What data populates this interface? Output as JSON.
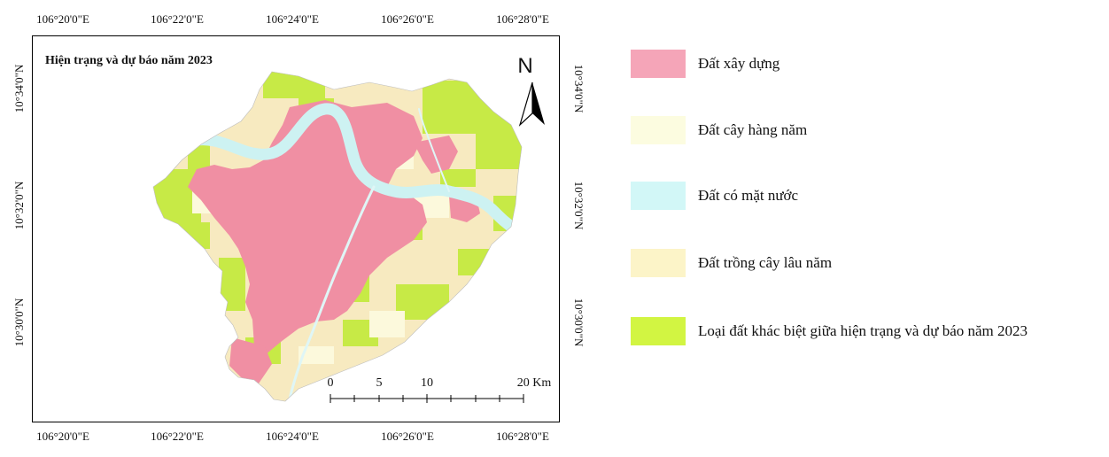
{
  "map": {
    "title": "Hiện trạng và dự báo năm 2023",
    "north_label": "N",
    "lon_labels": [
      "106°20'0\"E",
      "106°22'0\"E",
      "106°24'0\"E",
      "106°26'0\"E",
      "106°28'0\"E"
    ],
    "lat_labels": [
      "10°34'0\"N",
      "10°32'0\"N",
      "10°30'0\"N"
    ],
    "scale_bar": {
      "labels": [
        "0",
        "5",
        "10",
        "20 Km"
      ]
    }
  },
  "legend": {
    "items": [
      {
        "label": "Đất xây dựng",
        "color": "#f5a5b8"
      },
      {
        "label": "Đất cây hàng năm",
        "color": "#fcfce0"
      },
      {
        "label": "Đất có mặt nước",
        "color": "#d2f7f7"
      },
      {
        "label": "Đất trồng cây lâu năm",
        "color": "#fcf4c8"
      },
      {
        "label": "Loại đất khác biệt giữa hiện trạng và dự báo năm 2023",
        "color": "#d2f542"
      }
    ]
  }
}
